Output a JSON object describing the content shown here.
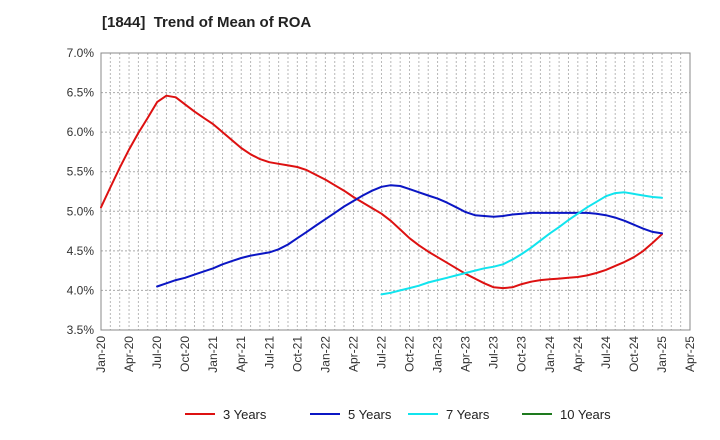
{
  "chart_data": {
    "type": "line",
    "title": "[1844]  Trend of Mean of ROA",
    "xlabel": "",
    "ylabel": "",
    "ylim": [
      3.5,
      7.0
    ],
    "xlim": [
      "2020-01",
      "2025-04"
    ],
    "y_ticks": [
      "3.5%",
      "4.0%",
      "4.5%",
      "5.0%",
      "5.5%",
      "6.0%",
      "6.5%",
      "7.0%"
    ],
    "x_ticks": [
      "Jan-20",
      "Apr-20",
      "Jul-20",
      "Oct-20",
      "Jan-21",
      "Apr-21",
      "Jul-21",
      "Oct-21",
      "Jan-22",
      "Apr-22",
      "Jul-22",
      "Oct-22",
      "Jan-23",
      "Apr-23",
      "Jul-23",
      "Oct-23",
      "Jan-24",
      "Apr-24",
      "Jul-24",
      "Oct-24",
      "Jan-25",
      "Apr-25"
    ],
    "grid": true,
    "legend_position": "bottom",
    "series": [
      {
        "name": "3 Years",
        "color": "#dd1111",
        "points": [
          [
            "2020-01",
            5.05
          ],
          [
            "2020-02",
            5.3
          ],
          [
            "2020-03",
            5.55
          ],
          [
            "2020-04",
            5.78
          ],
          [
            "2020-05",
            5.99
          ],
          [
            "2020-06",
            6.18
          ],
          [
            "2020-07",
            6.38
          ],
          [
            "2020-08",
            6.46
          ],
          [
            "2020-09",
            6.44
          ],
          [
            "2020-10",
            6.35
          ],
          [
            "2020-11",
            6.26
          ],
          [
            "2020-12",
            6.18
          ],
          [
            "2021-01",
            6.1
          ],
          [
            "2021-02",
            6.0
          ],
          [
            "2021-03",
            5.9
          ],
          [
            "2021-04",
            5.8
          ],
          [
            "2021-05",
            5.72
          ],
          [
            "2021-06",
            5.66
          ],
          [
            "2021-07",
            5.62
          ],
          [
            "2021-08",
            5.6
          ],
          [
            "2021-09",
            5.58
          ],
          [
            "2021-10",
            5.56
          ],
          [
            "2021-11",
            5.52
          ],
          [
            "2021-12",
            5.46
          ],
          [
            "2022-01",
            5.4
          ],
          [
            "2022-02",
            5.33
          ],
          [
            "2022-03",
            5.26
          ],
          [
            "2022-04",
            5.18
          ],
          [
            "2022-05",
            5.11
          ],
          [
            "2022-06",
            5.04
          ],
          [
            "2022-07",
            4.97
          ],
          [
            "2022-08",
            4.88
          ],
          [
            "2022-09",
            4.77
          ],
          [
            "2022-10",
            4.66
          ],
          [
            "2022-11",
            4.57
          ],
          [
            "2022-12",
            4.49
          ],
          [
            "2023-01",
            4.42
          ],
          [
            "2023-02",
            4.35
          ],
          [
            "2023-03",
            4.28
          ],
          [
            "2023-04",
            4.21
          ],
          [
            "2023-05",
            4.15
          ],
          [
            "2023-06",
            4.09
          ],
          [
            "2023-07",
            4.04
          ],
          [
            "2023-08",
            4.03
          ],
          [
            "2023-09",
            4.04
          ],
          [
            "2023-10",
            4.08
          ],
          [
            "2023-11",
            4.11
          ],
          [
            "2023-12",
            4.13
          ],
          [
            "2024-01",
            4.14
          ],
          [
            "2024-02",
            4.15
          ],
          [
            "2024-03",
            4.16
          ],
          [
            "2024-04",
            4.17
          ],
          [
            "2024-05",
            4.19
          ],
          [
            "2024-06",
            4.22
          ],
          [
            "2024-07",
            4.26
          ],
          [
            "2024-08",
            4.31
          ],
          [
            "2024-09",
            4.36
          ],
          [
            "2024-10",
            4.42
          ],
          [
            "2024-11",
            4.5
          ],
          [
            "2024-12",
            4.6
          ],
          [
            "2025-01",
            4.71
          ]
        ]
      },
      {
        "name": "5 Years",
        "color": "#0b16c4",
        "points": [
          [
            "2020-07",
            4.05
          ],
          [
            "2020-08",
            4.09
          ],
          [
            "2020-09",
            4.13
          ],
          [
            "2020-10",
            4.16
          ],
          [
            "2020-11",
            4.2
          ],
          [
            "2020-12",
            4.24
          ],
          [
            "2021-01",
            4.28
          ],
          [
            "2021-02",
            4.33
          ],
          [
            "2021-03",
            4.37
          ],
          [
            "2021-04",
            4.41
          ],
          [
            "2021-05",
            4.44
          ],
          [
            "2021-06",
            4.46
          ],
          [
            "2021-07",
            4.48
          ],
          [
            "2021-08",
            4.52
          ],
          [
            "2021-09",
            4.58
          ],
          [
            "2021-10",
            4.66
          ],
          [
            "2021-11",
            4.74
          ],
          [
            "2021-12",
            4.82
          ],
          [
            "2022-01",
            4.9
          ],
          [
            "2022-02",
            4.98
          ],
          [
            "2022-03",
            5.06
          ],
          [
            "2022-04",
            5.13
          ],
          [
            "2022-05",
            5.2
          ],
          [
            "2022-06",
            5.26
          ],
          [
            "2022-07",
            5.31
          ],
          [
            "2022-08",
            5.33
          ],
          [
            "2022-09",
            5.32
          ],
          [
            "2022-10",
            5.28
          ],
          [
            "2022-11",
            5.24
          ],
          [
            "2022-12",
            5.2
          ],
          [
            "2023-01",
            5.16
          ],
          [
            "2023-02",
            5.11
          ],
          [
            "2023-03",
            5.05
          ],
          [
            "2023-04",
            4.99
          ],
          [
            "2023-05",
            4.95
          ],
          [
            "2023-06",
            4.94
          ],
          [
            "2023-07",
            4.93
          ],
          [
            "2023-08",
            4.94
          ],
          [
            "2023-09",
            4.96
          ],
          [
            "2023-10",
            4.97
          ],
          [
            "2023-11",
            4.98
          ],
          [
            "2023-12",
            4.98
          ],
          [
            "2024-01",
            4.98
          ],
          [
            "2024-02",
            4.98
          ],
          [
            "2024-03",
            4.98
          ],
          [
            "2024-04",
            4.98
          ],
          [
            "2024-05",
            4.98
          ],
          [
            "2024-06",
            4.97
          ],
          [
            "2024-07",
            4.95
          ],
          [
            "2024-08",
            4.92
          ],
          [
            "2024-09",
            4.88
          ],
          [
            "2024-10",
            4.83
          ],
          [
            "2024-11",
            4.78
          ],
          [
            "2024-12",
            4.74
          ],
          [
            "2025-01",
            4.72
          ]
        ]
      },
      {
        "name": "7 Years",
        "color": "#11e4ee",
        "points": [
          [
            "2022-07",
            3.95
          ],
          [
            "2022-08",
            3.97
          ],
          [
            "2022-09",
            4.0
          ],
          [
            "2022-10",
            4.03
          ],
          [
            "2022-11",
            4.06
          ],
          [
            "2022-12",
            4.1
          ],
          [
            "2023-01",
            4.13
          ],
          [
            "2023-02",
            4.16
          ],
          [
            "2023-03",
            4.19
          ],
          [
            "2023-04",
            4.22
          ],
          [
            "2023-05",
            4.25
          ],
          [
            "2023-06",
            4.28
          ],
          [
            "2023-07",
            4.3
          ],
          [
            "2023-08",
            4.33
          ],
          [
            "2023-09",
            4.39
          ],
          [
            "2023-10",
            4.46
          ],
          [
            "2023-11",
            4.54
          ],
          [
            "2023-12",
            4.63
          ],
          [
            "2024-01",
            4.72
          ],
          [
            "2024-02",
            4.8
          ],
          [
            "2024-03",
            4.89
          ],
          [
            "2024-04",
            4.97
          ],
          [
            "2024-05",
            5.05
          ],
          [
            "2024-06",
            5.12
          ],
          [
            "2024-07",
            5.19
          ],
          [
            "2024-08",
            5.23
          ],
          [
            "2024-09",
            5.24
          ],
          [
            "2024-10",
            5.22
          ],
          [
            "2024-11",
            5.2
          ],
          [
            "2024-12",
            5.18
          ],
          [
            "2025-01",
            5.17
          ]
        ]
      },
      {
        "name": "10 Years",
        "color": "#1e7a1e",
        "points": []
      }
    ]
  }
}
